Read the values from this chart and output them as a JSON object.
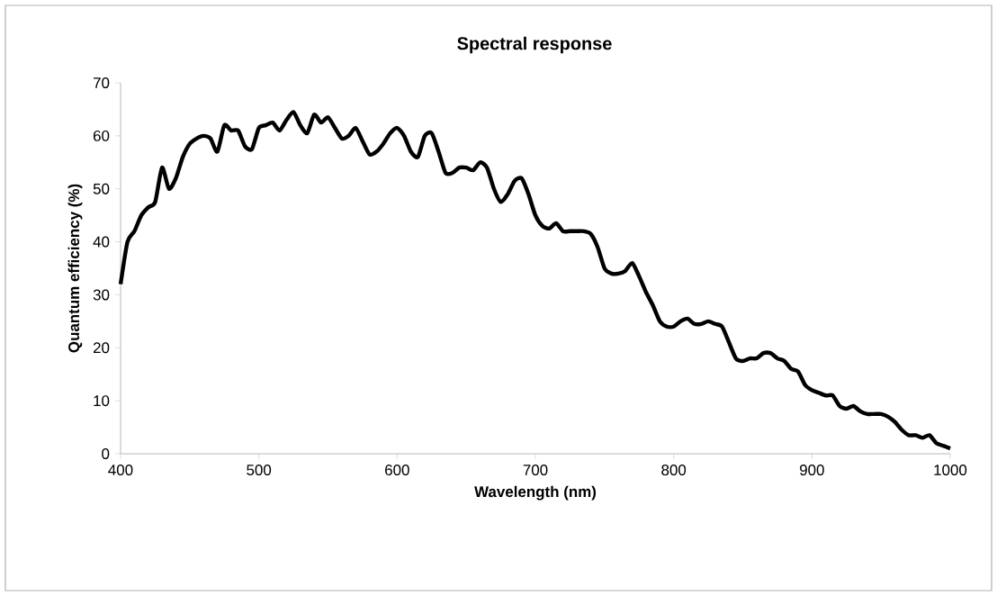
{
  "chart_data": {
    "type": "line",
    "title": "Spectral response",
    "xlabel": "Wavelength (nm)",
    "ylabel": "Quantum efficiency (%)",
    "x": [
      400,
      405,
      410,
      415,
      420,
      425,
      430,
      435,
      440,
      445,
      450,
      455,
      460,
      465,
      470,
      475,
      480,
      485,
      490,
      495,
      500,
      505,
      510,
      515,
      520,
      525,
      530,
      535,
      540,
      545,
      550,
      555,
      560,
      565,
      570,
      575,
      580,
      585,
      590,
      595,
      600,
      605,
      610,
      615,
      620,
      625,
      630,
      635,
      640,
      645,
      650,
      655,
      660,
      665,
      670,
      675,
      680,
      685,
      690,
      695,
      700,
      705,
      710,
      715,
      720,
      725,
      730,
      735,
      740,
      745,
      750,
      755,
      760,
      765,
      770,
      775,
      780,
      785,
      790,
      795,
      800,
      805,
      810,
      815,
      820,
      825,
      830,
      835,
      840,
      845,
      850,
      855,
      860,
      865,
      870,
      875,
      880,
      885,
      890,
      895,
      900,
      905,
      910,
      915,
      920,
      925,
      930,
      935,
      940,
      945,
      950,
      955,
      960,
      965,
      970,
      975,
      980,
      985,
      990,
      995,
      1000
    ],
    "series": [
      {
        "color": "#000000",
        "values": [
          32,
          40,
          42,
          45,
          46.5,
          47.5,
          54,
          50,
          52,
          56,
          58.5,
          59.5,
          60,
          59.5,
          57,
          62,
          61,
          61,
          58,
          57.5,
          61.5,
          62,
          62.5,
          61,
          63,
          64.5,
          62,
          60.5,
          64,
          62.5,
          63.5,
          61.5,
          59.5,
          60,
          61.5,
          59,
          56.5,
          57,
          58.5,
          60.5,
          61.5,
          60,
          57,
          56,
          60,
          60.5,
          57,
          53,
          53,
          54,
          54,
          53.5,
          55,
          54,
          50,
          47.5,
          49,
          51.5,
          52,
          49,
          45,
          43,
          42.5,
          43.5,
          42,
          42,
          42,
          42,
          41.5,
          39,
          35,
          34,
          34,
          34.5,
          36,
          33.5,
          30.5,
          28,
          25,
          24,
          24,
          25,
          25.5,
          24.5,
          24.5,
          25,
          24.5,
          24,
          21,
          18,
          17.5,
          18,
          18,
          19,
          19,
          18,
          17.5,
          16,
          15.5,
          13,
          12,
          11.5,
          11,
          11,
          9,
          8.5,
          9,
          8,
          7.5,
          7.5,
          7.5,
          7,
          6,
          4.5,
          3.5,
          3.5,
          3,
          3.5,
          2,
          1.5,
          1
        ]
      }
    ],
    "xlim": [
      400,
      1000
    ],
    "xticks": [
      400,
      500,
      600,
      700,
      800,
      900,
      1000
    ],
    "ylim": [
      0,
      70
    ],
    "yticks": [
      0,
      10,
      20,
      30,
      40,
      50,
      60,
      70
    ],
    "grid": false,
    "marker": "none",
    "line_style": "solid"
  }
}
